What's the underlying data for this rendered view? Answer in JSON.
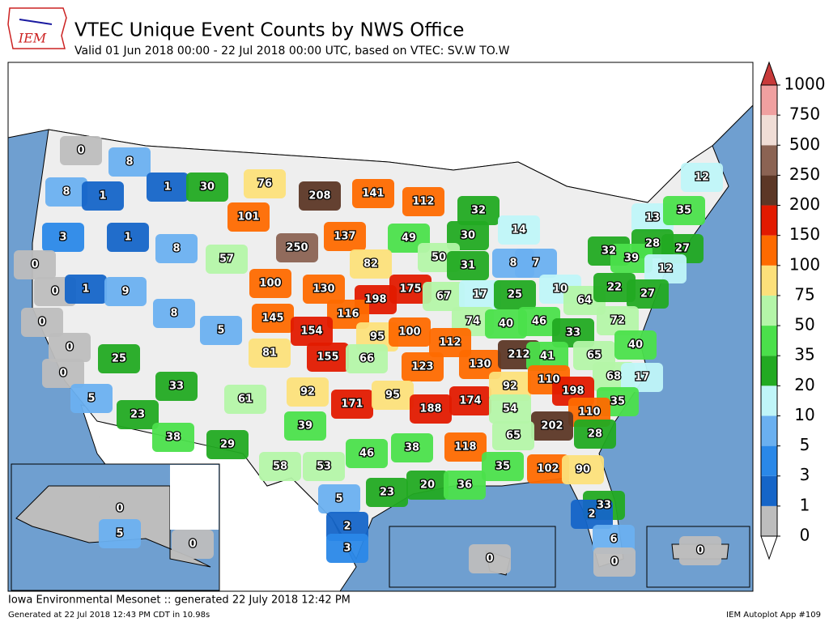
{
  "header": {
    "logo": "IEM",
    "title": "VTEC Unique Event Counts by NWS Office",
    "subtitle": "Valid 01 Jun 2018 00:00 - 22 Jul 2018 00:00 UTC, based on VTEC: SV.W TO.W"
  },
  "colorbar": {
    "levels": [
      0,
      1,
      3,
      5,
      10,
      20,
      35,
      50,
      75,
      100,
      150,
      200,
      250,
      500,
      750,
      1000
    ],
    "colors": [
      "#bdbdbd",
      "#1565c8",
      "#2a88e8",
      "#6ab0f0",
      "#bff5f8",
      "#22aa22",
      "#4be04b",
      "#b4f5a8",
      "#fce07a",
      "#fe6a00",
      "#e21a00",
      "#5c3726",
      "#8b6353",
      "#f0ddd6",
      "#f0a0a0"
    ],
    "over_color": "#c83a3a"
  },
  "office_counts": [
    0,
    8,
    8,
    1,
    1,
    30,
    76,
    208,
    141,
    112,
    3,
    1,
    101,
    137,
    49,
    32,
    30,
    14,
    12,
    13,
    35,
    0,
    8,
    57,
    250,
    82,
    50,
    31,
    8,
    7,
    32,
    28,
    27,
    39,
    12,
    0,
    1,
    9,
    100,
    130,
    198,
    175,
    67,
    17,
    25,
    10,
    64,
    22,
    27,
    0,
    8,
    145,
    116,
    154,
    95,
    100,
    74,
    40,
    46,
    33,
    72,
    0,
    5,
    81,
    155,
    66,
    112,
    130,
    212,
    41,
    65,
    40,
    0,
    25,
    123,
    68,
    17,
    33,
    61,
    92,
    171,
    95,
    188,
    174,
    92,
    110,
    198,
    35,
    5,
    54,
    110,
    23,
    39,
    202,
    28,
    38,
    29,
    65,
    118,
    46,
    38,
    58,
    53,
    35,
    102,
    90,
    23,
    20,
    36,
    5,
    2,
    3,
    33,
    2,
    6,
    0,
    0,
    5,
    0,
    0,
    0
  ],
  "footer": {
    "left": "Iowa Environmental Mesonet :: generated 22 July 2018 12:42 PM",
    "small": "Generated at 22 Jul 2018 12:43 PM CDT in 10.98s",
    "right": "IEM Autoplot App #109"
  }
}
